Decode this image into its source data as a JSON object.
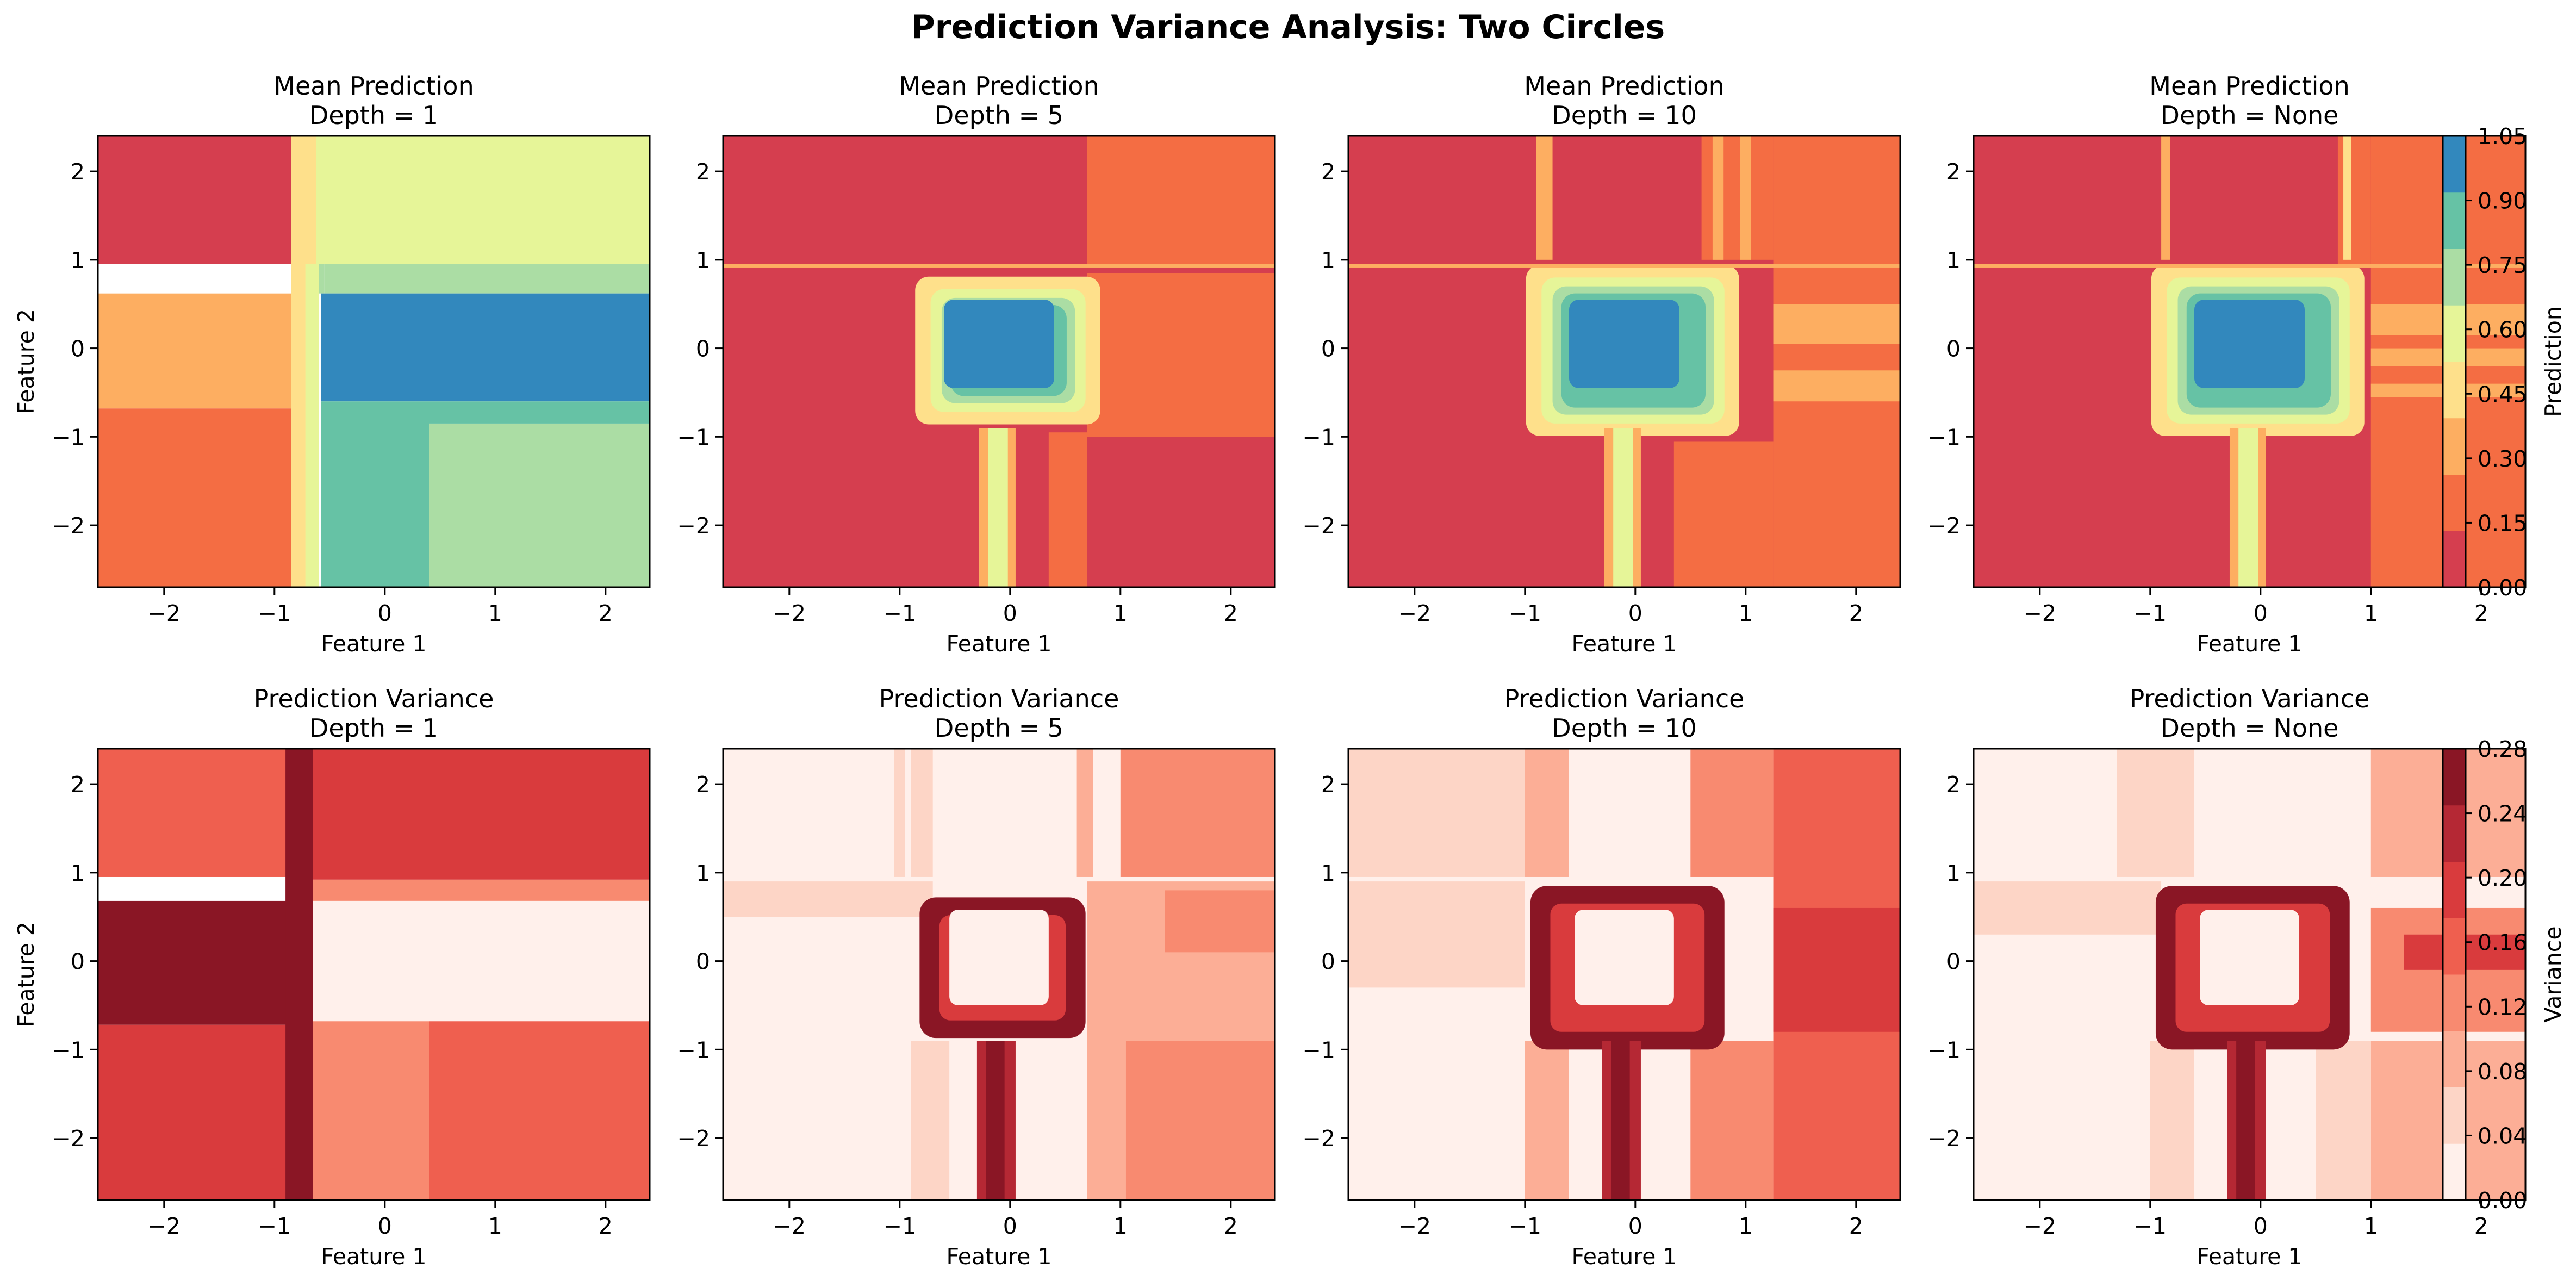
{
  "chart_data": {
    "type": "contour-grid",
    "title": "Prediction Variance Analysis: Two Circles",
    "rows": [
      {
        "name": "mean",
        "panel_titles": [
          [
            "Mean Prediction",
            "Depth = 1"
          ],
          [
            "Mean Prediction",
            "Depth = 5"
          ],
          [
            "Mean Prediction",
            "Depth = 10"
          ],
          [
            "Mean Prediction",
            "Depth = None"
          ]
        ],
        "colorbar": {
          "label": "Prediction",
          "levels": [
            "0.00",
            "0.15",
            "0.30",
            "0.45",
            "0.60",
            "0.75",
            "0.90",
            "1.05"
          ],
          "colors": [
            "#d53e4f",
            "#f46d43",
            "#fdae61",
            "#fee08b",
            "#e6f598",
            "#abdda4",
            "#66c2a5",
            "#3288bd"
          ]
        }
      },
      {
        "name": "variance",
        "panel_titles": [
          [
            "Prediction Variance",
            "Depth = 1"
          ],
          [
            "Prediction Variance",
            "Depth = 5"
          ],
          [
            "Prediction Variance",
            "Depth = 10"
          ],
          [
            "Prediction Variance",
            "Depth = None"
          ]
        ],
        "colorbar": {
          "label": "Variance",
          "levels": [
            "0.00",
            "0.04",
            "0.08",
            "0.12",
            "0.16",
            "0.20",
            "0.24",
            "0.28"
          ],
          "colors": [
            "#fff0eb",
            "#fdd5c6",
            "#fcae96",
            "#f88a70",
            "#ef5f4f",
            "#d93b3d",
            "#b52834",
            "#8a1625"
          ]
        }
      }
    ],
    "xlabel": "Feature 1",
    "ylabel": "Feature 2",
    "xlim": [
      -2.6,
      2.4
    ],
    "ylim": [
      -2.7,
      2.4
    ],
    "xticks": [
      "−2",
      "−1",
      "0",
      "1",
      "2"
    ],
    "yticks": [
      "−2",
      "−1",
      "0",
      "1",
      "2"
    ]
  }
}
